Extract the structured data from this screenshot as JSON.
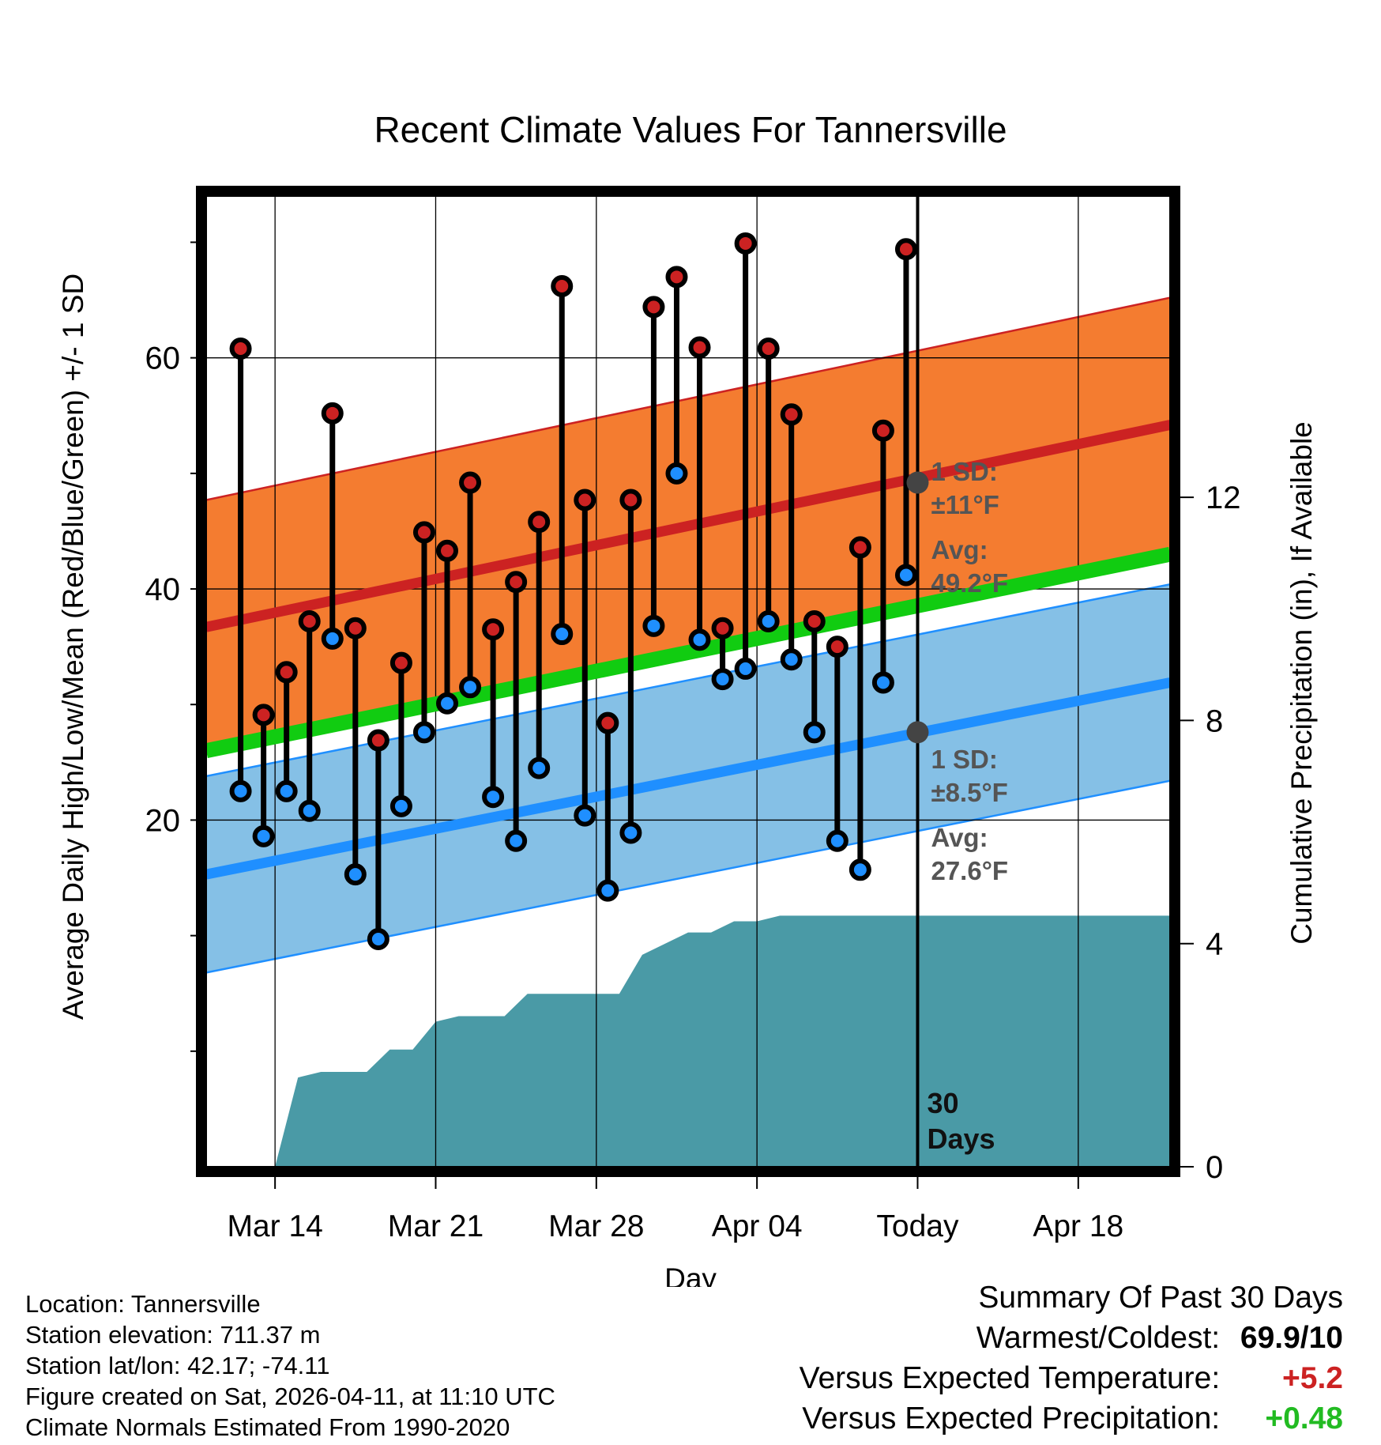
{
  "chart_data": {
    "type": "line",
    "title": "Recent Climate Values For Tannersville",
    "xlabel": "Day",
    "ylabel": "Average Daily High/Low/Mean (Red/Blue/Green) +/- 1 SD",
    "y2label": "Cumulative Precipitation (in), If Available",
    "x_range_days": [
      0,
      42
    ],
    "ylim": [
      -10,
      74
    ],
    "y2lim": [
      0,
      17.4
    ],
    "y_ticks": [
      20,
      40,
      60
    ],
    "y_minor_ticks": [
      0,
      10,
      30,
      50,
      70
    ],
    "y2_ticks": [
      0,
      4,
      8,
      12
    ],
    "x_ticks": [
      {
        "day": 3,
        "label": "Mar 14"
      },
      {
        "day": 10,
        "label": "Mar 21"
      },
      {
        "day": 17,
        "label": "Mar 28"
      },
      {
        "day": 24,
        "label": "Apr 04"
      },
      {
        "day": 31,
        "label": "Today"
      },
      {
        "day": 38,
        "label": "Apr 18"
      }
    ],
    "today_day": 31,
    "window_label_line1": "30",
    "window_label_line2": "Days",
    "normal_high": {
      "avg_start": 36.7,
      "avg_end": 54.2,
      "sd": 11,
      "sd_label_line1": "1 SD:",
      "sd_label_line2": "±11°F",
      "avg_label_line1": "Avg:",
      "avg_label_line2": "49.2°F",
      "today_avg": 49.2
    },
    "normal_low": {
      "avg_start": 15.3,
      "avg_end": 31.9,
      "sd": 8.5,
      "sd_label_line1": "1 SD:",
      "sd_label_line2": "±8.5°F",
      "avg_label_line1": "Avg:",
      "avg_label_line2": "27.6°F",
      "today_avg": 27.6
    },
    "normal_mean": {
      "start": 26.0,
      "end": 43.0
    },
    "series": [
      {
        "name": "Daily High",
        "color": "#cc2222",
        "values": [
          60.8,
          29.1,
          32.8,
          37.2,
          55.2,
          36.6,
          26.9,
          33.6,
          44.9,
          43.3,
          49.2,
          36.5,
          40.6,
          45.8,
          66.2,
          47.7,
          28.4,
          47.7,
          64.4,
          67.0,
          60.9,
          36.6,
          69.9,
          60.8,
          55.1,
          37.2,
          35.0,
          43.6,
          53.7,
          69.4
        ]
      },
      {
        "name": "Daily Low",
        "color": "#1f8fff",
        "values": [
          22.5,
          18.6,
          22.5,
          20.8,
          35.7,
          15.3,
          9.7,
          21.2,
          27.6,
          30.1,
          31.5,
          22.0,
          18.2,
          24.5,
          36.1,
          20.4,
          13.9,
          18.9,
          36.8,
          50.0,
          35.6,
          32.2,
          33.1,
          37.2,
          33.9,
          27.6,
          18.2,
          15.7,
          31.9,
          41.2
        ]
      }
    ],
    "precipitation": {
      "name": "Cumulative Precipitation",
      "color": "#4a9aa6",
      "days": [
        3,
        4,
        5,
        6,
        7,
        8,
        9,
        10,
        11,
        12,
        13,
        14,
        15,
        16,
        17,
        18,
        19,
        20,
        21,
        22,
        23,
        24,
        25,
        26,
        27,
        28,
        29,
        30,
        31,
        42
      ],
      "values": [
        0,
        1.6,
        1.7,
        1.7,
        1.7,
        2.1,
        2.1,
        2.6,
        2.7,
        2.7,
        2.7,
        3.1,
        3.1,
        3.1,
        3.1,
        3.1,
        3.8,
        4.0,
        4.2,
        4.2,
        4.4,
        4.4,
        4.5,
        4.5,
        4.5,
        4.5,
        4.5,
        4.5,
        4.5,
        4.5
      ]
    }
  },
  "location_info": [
    "Location: Tannersville",
    "Station elevation: 711.37 m",
    "Station lat/lon: 42.17; -74.11",
    "Figure created on Sat, 2026-04-11, at 11:10 UTC",
    "Climate Normals Estimated From 1990-2020"
  ],
  "summary": {
    "title": "Summary Of Past 30 Days",
    "warmest_coldest_label": "Warmest/Coldest:",
    "warmest_coldest_value": "69.9/10",
    "temp_label": "Versus Expected Temperature:",
    "temp_value": "+5.2",
    "temp_color": "#cc2222",
    "precip_label": "Versus Expected Precipitation:",
    "precip_value": "+0.48",
    "precip_color": "#22bb22"
  }
}
